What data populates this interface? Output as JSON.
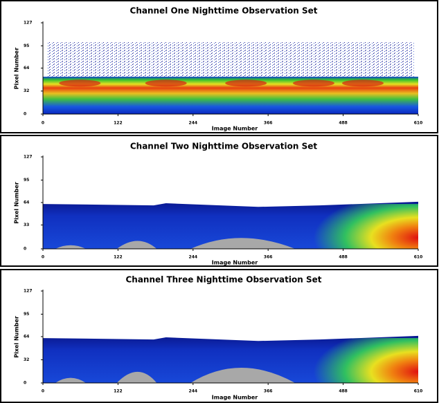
{
  "chart_data": [
    {
      "type": "heatmap",
      "title": "Channel One Nighttime Observation Set",
      "xlabel": "Image Number",
      "ylabel": "Pixel Number",
      "xlim": [
        0,
        610
      ],
      "xticks": [
        0,
        122,
        244,
        366,
        488,
        610
      ],
      "ylim": [
        0,
        127
      ],
      "yticks": [
        0,
        32,
        64,
        95,
        127
      ]
    },
    {
      "type": "heatmap",
      "title": "Channel Two Nighttime Observation Set",
      "xlabel": "Image Number",
      "ylabel": "Pixel Number",
      "xlim": [
        0,
        610
      ],
      "xticks": [
        0,
        122,
        244,
        366,
        488,
        610
      ],
      "ylim": [
        0,
        127
      ],
      "yticks": [
        0,
        33,
        64,
        95,
        127
      ]
    },
    {
      "type": "heatmap",
      "title": "Channel Three Nighttime Observation Set",
      "xlabel": "Image Number",
      "ylabel": "Pixel Number",
      "xlim": [
        0,
        610
      ],
      "xticks": [
        0,
        122,
        244,
        366,
        488,
        610
      ],
      "ylim": [
        0,
        127
      ],
      "yticks": [
        0,
        32,
        64,
        95,
        127
      ]
    }
  ]
}
